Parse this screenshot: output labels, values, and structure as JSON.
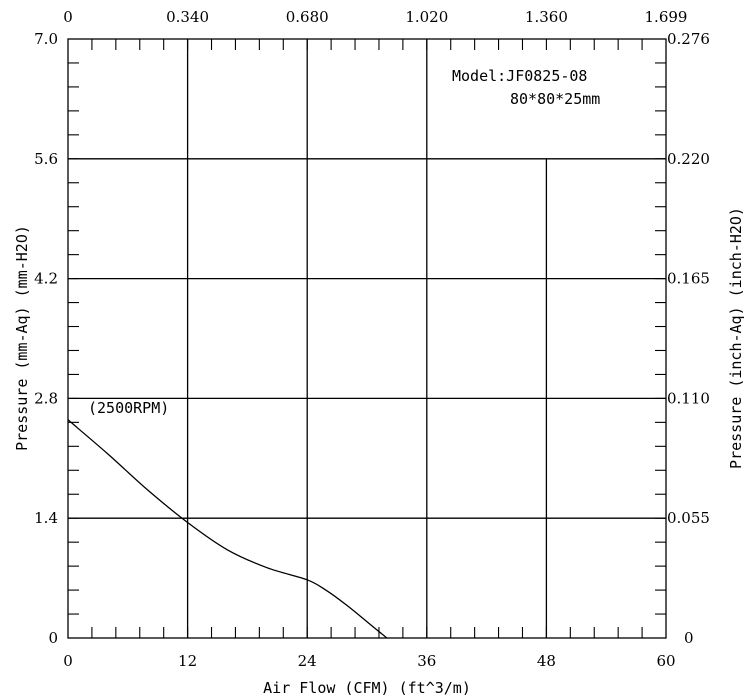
{
  "chart_data": {
    "type": "line",
    "xlabel": "Air Flow (CFM) (ft^3/m)",
    "ylabel": "Pressure (mm-Aq) (mm-H2O)",
    "ylabel_right": "Pressure (inch-Aq) (inch-H2O)",
    "xlim": [
      0,
      60
    ],
    "ylim": [
      0,
      7.0
    ],
    "x_ticks": [
      0,
      12,
      24,
      36,
      48,
      60
    ],
    "x_tick_labels": [
      "0",
      "12",
      "24",
      "36",
      "48",
      "60"
    ],
    "x_top_tick_labels": [
      "0",
      "0.340",
      "0.680",
      "1.020",
      "1.360",
      "1.699"
    ],
    "y_ticks": [
      0,
      1.4,
      2.8,
      4.2,
      5.6,
      7.0
    ],
    "y_tick_labels": [
      "0",
      "1.4",
      "2.8",
      "4.2",
      "5.6",
      "7.0"
    ],
    "y_right_tick_labels": [
      "0",
      "0.055",
      "0.110",
      "0.165",
      "0.220",
      "0.276"
    ],
    "grid": true,
    "model_label": "Model:JF0825-08",
    "size_label": "80*80*25mm",
    "series": [
      {
        "name": "(2500RPM)",
        "x": [
          0,
          4,
          8,
          12,
          16,
          20,
          24,
          26,
          28,
          30,
          32
        ],
        "y": [
          2.55,
          2.15,
          1.73,
          1.35,
          1.03,
          0.82,
          0.68,
          0.55,
          0.38,
          0.19,
          0.0
        ]
      }
    ]
  }
}
